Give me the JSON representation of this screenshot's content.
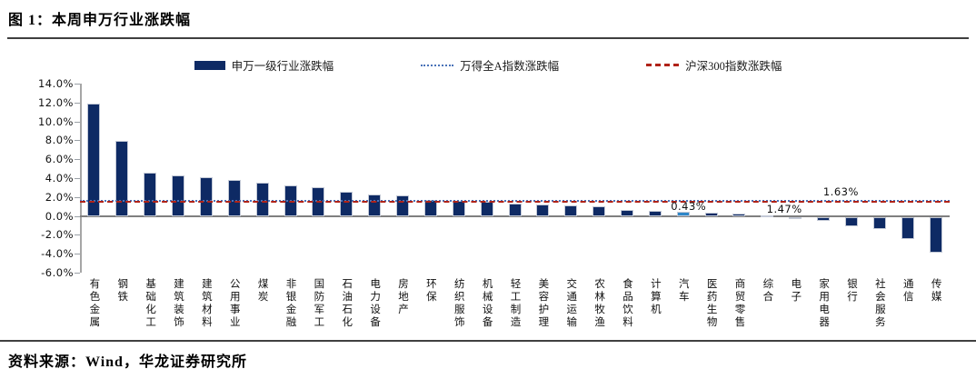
{
  "header": {
    "title": "图 1：本周申万行业涨跌幅"
  },
  "footer": {
    "source": "资料来源：Wind，华龙证券研究所"
  },
  "legend": {
    "items": [
      {
        "label": "申万一级行业涨跌幅",
        "swatch": "bar-swatch",
        "color": "#0e2a64"
      },
      {
        "label": "万得全A指数涨跌幅",
        "swatch": "dotted-line-swatch",
        "color": "#4a72b8"
      },
      {
        "label": "沪深300指数涨跌幅",
        "swatch": "dashed-line-swatch",
        "color": "#b02318"
      }
    ]
  },
  "chart_data": {
    "type": "bar",
    "title": "本周申万行业涨跌幅",
    "xlabel": "",
    "ylabel": "",
    "unit": "%",
    "ylim": [
      -6,
      14
    ],
    "ytick_step": 2,
    "ytick_labels": [
      "14.0%",
      "12.0%",
      "10.0%",
      "8.0%",
      "6.0%",
      "4.0%",
      "2.0%",
      "0.0%",
      "-2.0%",
      "-4.0%",
      "-6.0%"
    ],
    "grid": false,
    "legend_position": "top",
    "bar_color": "#0e2a64",
    "categories": [
      "有色金属",
      "钢铁",
      "基础化工",
      "建筑装饰",
      "建筑材料",
      "公用事业",
      "煤炭",
      "非银金融",
      "国防军工",
      "石油石化",
      "电力设备",
      "房地产",
      "环保",
      "纺织服饰",
      "机械设备",
      "轻工制造",
      "美容护理",
      "交通运输",
      "农林牧渔",
      "食品饮料",
      "计算机",
      "汽车",
      "医药生物",
      "商贸零售",
      "综合",
      "电子",
      "家用电器",
      "银行",
      "社会服务",
      "通信",
      "传媒"
    ],
    "values": [
      11.9,
      7.9,
      4.6,
      4.3,
      4.1,
      3.8,
      3.5,
      3.2,
      3.0,
      2.6,
      2.3,
      2.2,
      1.7,
      1.6,
      1.5,
      1.3,
      1.2,
      1.1,
      1.0,
      0.6,
      0.5,
      0.43,
      0.35,
      0.25,
      0.05,
      -0.08,
      -0.4,
      -1.0,
      -1.3,
      -2.3,
      -3.8
    ],
    "highlight": {
      "category": "汽车",
      "value": 0.43,
      "color": "#2e86c8",
      "label": "0.43%"
    },
    "reference_lines": [
      {
        "name": "万得全A指数涨跌幅",
        "value": 1.63,
        "style": "dotted",
        "color": "#4a72b8",
        "label": "1.63%"
      },
      {
        "name": "沪深300指数涨跌幅",
        "value": 1.47,
        "style": "dashed",
        "color": "#b02318",
        "label": "1.47%"
      }
    ]
  }
}
